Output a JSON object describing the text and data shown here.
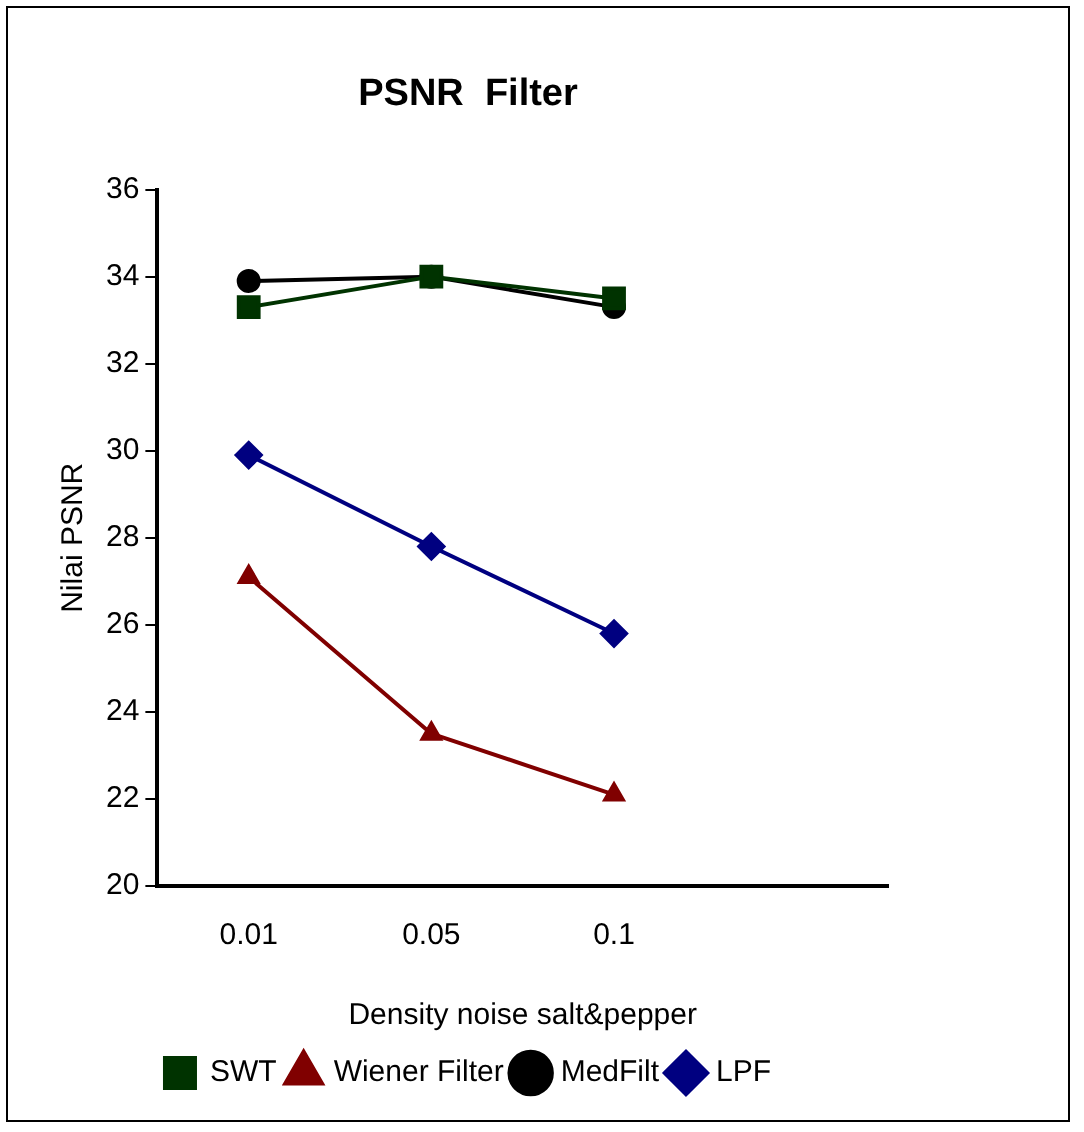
{
  "chart_data": {
    "type": "line",
    "title": "PSNR  Filter",
    "xlabel": "Density noise salt&pepper",
    "ylabel": "Nilai PSNR",
    "categories": [
      "0.01",
      "0.05",
      "0.1",
      null
    ],
    "series": [
      {
        "name": "LPF",
        "color": "#000080",
        "marker": "diamond",
        "values": [
          29.9,
          27.8,
          25.8,
          null
        ]
      },
      {
        "name": "MedFilt",
        "color": "#000000",
        "marker": "circle",
        "values": [
          33.9,
          34.0,
          33.3,
          null
        ]
      },
      {
        "name": "Wiener Filter",
        "color": "#800000",
        "marker": "triangle",
        "values": [
          27.1,
          23.5,
          22.1,
          null
        ]
      },
      {
        "name": "SWT",
        "color": "#003300",
        "marker": "square",
        "values": [
          33.3,
          34.0,
          33.5,
          null
        ]
      }
    ],
    "ylim": [
      20,
      36
    ],
    "yticks": [
      20,
      22,
      24,
      26,
      28,
      30,
      32,
      34,
      36
    ],
    "grid": false,
    "legend": "bottom"
  }
}
